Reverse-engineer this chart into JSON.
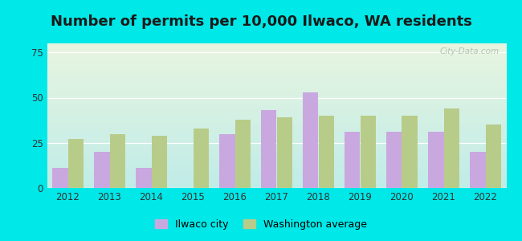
{
  "title": "Number of permits per 10,000 Ilwaco, WA residents",
  "years": [
    2012,
    2013,
    2014,
    2015,
    2016,
    2017,
    2018,
    2019,
    2020,
    2021,
    2022
  ],
  "ilwaco": [
    11,
    20,
    11,
    0,
    30,
    43,
    53,
    31,
    31,
    31,
    20
  ],
  "wa_avg": [
    27,
    30,
    29,
    33,
    38,
    39,
    40,
    40,
    40,
    44,
    35
  ],
  "ilwaco_color": "#c9a8e0",
  "wa_avg_color": "#b8cc8a",
  "outer_bg": "#00e8e8",
  "ylim": [
    0,
    80
  ],
  "yticks": [
    0,
    25,
    50,
    75
  ],
  "bar_width": 0.38,
  "legend_ilwaco": "Ilwaco city",
  "legend_wa": "Washington average",
  "title_fontsize": 13,
  "watermark": "City-Data.com"
}
